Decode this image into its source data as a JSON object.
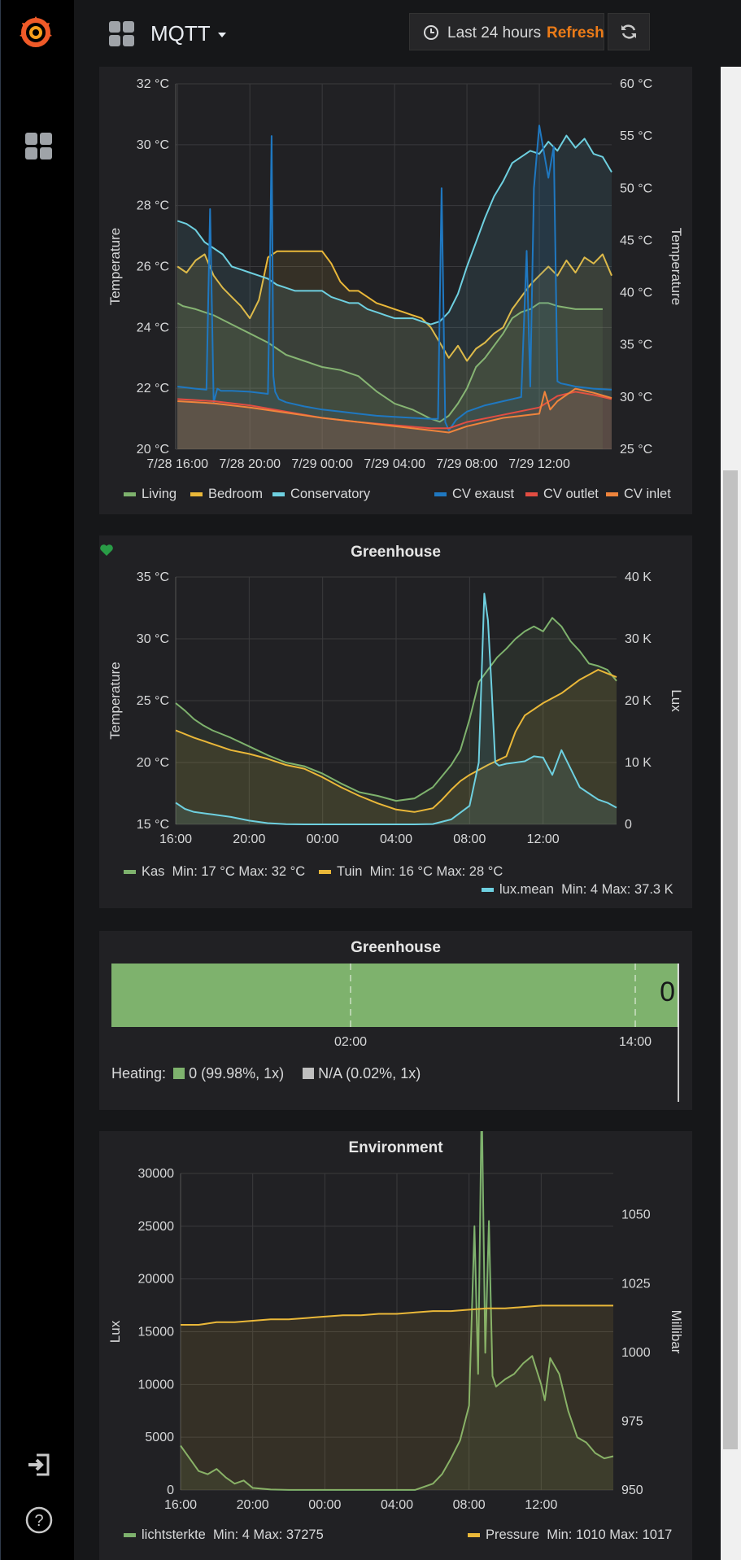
{
  "app": {
    "dashboard_title": "MQTT",
    "time_range": "Last 24 hours",
    "refresh_label": "Refresh e...",
    "icons": {
      "logo": "grafana-logo-icon",
      "dashboards": "dashboards-grid-icon",
      "signin": "sign-in-icon",
      "help": "help-question-icon",
      "clock": "clock-icon",
      "refresh": "refresh-icon"
    }
  },
  "panels": {
    "temperatures": {
      "title": "",
      "legend": [
        {
          "name": "Living",
          "color": "#7eb26d"
        },
        {
          "name": "Bedroom",
          "color": "#eab839"
        },
        {
          "name": "Conservatory",
          "color": "#6ed0e0"
        },
        {
          "name": "CV exaust",
          "color": "#1f78c1"
        },
        {
          "name": "CV outlet",
          "color": "#e24d42"
        },
        {
          "name": "CV inlet",
          "color": "#ef843c"
        }
      ]
    },
    "greenhouse_graph": {
      "title": "Greenhouse",
      "legend": [
        {
          "name": "Kas",
          "stats": "Min: 17 °C  Max: 32 °C",
          "color": "#7eb26d"
        },
        {
          "name": "Tuin",
          "stats": "Min: 16 °C  Max: 28 °C",
          "color": "#eab839"
        },
        {
          "name": "lux.mean",
          "stats": "Min: 4  Max: 37.3 K",
          "color": "#6ed0e0"
        }
      ]
    },
    "greenhouse_heating": {
      "title": "Greenhouse",
      "current_value": "0",
      "x_ticks": [
        "02:00",
        "14:00"
      ],
      "legend_label": "Heating:",
      "legend": [
        {
          "text": "0 (99.98%, 1x)",
          "color": "#7eb26d"
        },
        {
          "text": "N/A (0.02%, 1x)",
          "color": "#bfbfbf"
        }
      ],
      "share_zero": 0.9998
    },
    "environment": {
      "title": "Environment",
      "legend": [
        {
          "name": "lichtsterkte",
          "stats": "Min: 4  Max: 37275",
          "color": "#7eb26d"
        },
        {
          "name": "Pressure",
          "stats": "Min: 1010  Max: 1017",
          "color": "#eab839"
        }
      ]
    }
  },
  "chart_data": [
    {
      "type": "line",
      "title": "",
      "ylabel": "Temperature",
      "y2label": "Temperature",
      "x_ticks": [
        "7/28 16:00",
        "7/28 20:00",
        "7/29 00:00",
        "7/29 04:00",
        "7/29 08:00",
        "7/29 12:00"
      ],
      "x_range_hours": [
        -0.1,
        24
      ],
      "ylim": [
        20,
        32
      ],
      "y_ticks": [
        "20 °C",
        "22 °C",
        "24 °C",
        "26 °C",
        "28 °C",
        "30 °C",
        "32 °C"
      ],
      "y2lim": [
        25,
        60
      ],
      "y2_ticks": [
        "25 °C",
        "30 °C",
        "35 °C",
        "40 °C",
        "45 °C",
        "50 °C",
        "55 °C",
        "60 °C"
      ],
      "grid": true,
      "legend_position": "bottom",
      "series": [
        {
          "name": "Living",
          "axis": "left",
          "color": "#7eb26d",
          "x": [
            0,
            0.3,
            1,
            2,
            3,
            4,
            5,
            6,
            7,
            8,
            9,
            10,
            11,
            12,
            13,
            14,
            14.5,
            15,
            15.5,
            16,
            16.5,
            17,
            17.5,
            18,
            18.5,
            19,
            19.5,
            20,
            20.5,
            21,
            22,
            23,
            23.5
          ],
          "y": [
            24.8,
            24.7,
            24.6,
            24.4,
            24.1,
            23.8,
            23.5,
            23.1,
            22.9,
            22.7,
            22.6,
            22.4,
            21.9,
            21.5,
            21.3,
            21.0,
            20.9,
            21.1,
            21.5,
            22,
            22.7,
            23,
            23.4,
            23.8,
            24.3,
            24.5,
            24.6,
            24.8,
            24.8,
            24.7,
            24.6,
            24.6,
            24.6
          ]
        },
        {
          "name": "Bedroom",
          "axis": "left",
          "color": "#eab839",
          "x": [
            0,
            0.5,
            1,
            1.5,
            2,
            2.5,
            3,
            3.5,
            4,
            4.5,
            5,
            5.5,
            6,
            6.5,
            7,
            7.5,
            8,
            8.5,
            9,
            9.5,
            10,
            10.5,
            11,
            11.5,
            12,
            12.5,
            13,
            13.5,
            14,
            14.5,
            15,
            15.5,
            16,
            16.5,
            17,
            17.5,
            18,
            18.5,
            19,
            19.5,
            20,
            20.5,
            21,
            21.5,
            22,
            22.5,
            23,
            23.5,
            24
          ],
          "y": [
            26.0,
            25.8,
            26.2,
            26.4,
            25.7,
            25.3,
            25.0,
            24.7,
            24.3,
            24.9,
            26.3,
            26.5,
            26.5,
            26.5,
            26.5,
            26.5,
            26.5,
            26.1,
            25.5,
            25.2,
            25.2,
            25.0,
            24.8,
            24.7,
            24.6,
            24.5,
            24.4,
            24.3,
            24.0,
            23.5,
            23.0,
            23.4,
            22.9,
            23.3,
            23.5,
            23.8,
            24.0,
            24.6,
            25.0,
            25.4,
            25.7,
            26.0,
            25.7,
            26.2,
            25.8,
            26.3,
            26.1,
            26.4,
            25.7
          ]
        },
        {
          "name": "Conservatory",
          "axis": "left",
          "color": "#6ed0e0",
          "x": [
            0,
            0.5,
            1,
            1.5,
            2,
            2.5,
            3,
            3.5,
            4,
            4.5,
            5,
            5.5,
            6,
            6.5,
            7,
            7.5,
            8,
            8.5,
            9,
            9.5,
            10,
            10.5,
            11,
            11.5,
            12,
            12.5,
            13,
            13.5,
            14,
            14.5,
            15,
            15.5,
            16,
            16.5,
            17,
            17.5,
            18,
            18.5,
            19,
            19.5,
            20,
            20.5,
            21,
            21.5,
            22,
            22.5,
            23,
            23.5,
            24
          ],
          "y": [
            27.5,
            27.4,
            27.2,
            26.8,
            26.6,
            26.4,
            26.0,
            25.9,
            25.8,
            25.7,
            25.6,
            25.4,
            25.3,
            25.2,
            25.2,
            25.2,
            25.2,
            25.0,
            24.9,
            24.8,
            24.8,
            24.6,
            24.5,
            24.4,
            24.3,
            24.3,
            24.3,
            24.2,
            24.1,
            24.2,
            24.5,
            25.1,
            26.0,
            26.8,
            27.6,
            28.3,
            28.8,
            29.4,
            29.6,
            29.8,
            29.7,
            30.1,
            29.8,
            30.3,
            29.9,
            30.2,
            29.7,
            29.6,
            29.1
          ]
        },
        {
          "name": "CV exaust",
          "axis": "right",
          "color": "#1f78c1",
          "x": [
            0,
            1,
            1.6,
            1.8,
            2.0,
            2.2,
            2.4,
            3,
            4,
            5,
            5.1,
            5.2,
            5.3,
            5.4,
            5.6,
            6,
            7,
            8,
            9,
            10,
            11,
            12,
            13,
            14,
            14.4,
            14.6,
            14.8,
            15,
            15.4,
            16,
            17,
            18,
            19,
            19.3,
            19.5,
            19.7,
            20,
            20.5,
            20.8,
            21,
            21.2,
            21.5,
            22,
            23,
            24
          ],
          "y": [
            31,
            30.8,
            30.7,
            48,
            29.5,
            30.8,
            30.6,
            30.6,
            30.5,
            30.3,
            41,
            55,
            32,
            30.5,
            29.8,
            29.5,
            29.1,
            28.8,
            28.6,
            28.4,
            28.2,
            28.1,
            28.0,
            27.9,
            27.9,
            50,
            27.6,
            26.8,
            27.8,
            28.6,
            29.2,
            29.6,
            30.0,
            44,
            31,
            50,
            56,
            51,
            54,
            31.5,
            31.3,
            31.2,
            31.0,
            30.8,
            30.7
          ]
        },
        {
          "name": "CV outlet",
          "axis": "right",
          "color": "#e24d42",
          "x": [
            0,
            2,
            4,
            6,
            8,
            10,
            12,
            14,
            15,
            16,
            18,
            20,
            21,
            22,
            23,
            24
          ],
          "y": [
            29.8,
            29.6,
            29.2,
            28.6,
            28.0,
            27.6,
            27.3,
            27.0,
            27.0,
            27.6,
            28.3,
            29.0,
            30.1,
            30.5,
            30.2,
            29.8
          ]
        },
        {
          "name": "CV inlet",
          "axis": "right",
          "color": "#ef843c",
          "x": [
            0,
            2,
            4,
            6,
            8,
            10,
            12,
            14,
            15,
            16,
            18,
            20,
            20.3,
            20.6,
            21,
            22,
            23,
            24
          ],
          "y": [
            29.6,
            29.4,
            29.0,
            28.5,
            28.0,
            27.6,
            27.2,
            26.8,
            26.6,
            27.2,
            28.0,
            28.4,
            30.5,
            28.8,
            29.6,
            30.8,
            30.4,
            29.9
          ]
        }
      ]
    },
    {
      "type": "line",
      "title": "Greenhouse",
      "ylabel": "Temperature",
      "y2label": "Lux",
      "x_ticks": [
        "16:00",
        "20:00",
        "00:00",
        "04:00",
        "08:00",
        "12:00"
      ],
      "x_range_hours": [
        0,
        24
      ],
      "ylim": [
        15,
        35
      ],
      "y_ticks": [
        "15 °C",
        "20 °C",
        "25 °C",
        "30 °C",
        "35 °C"
      ],
      "y2lim": [
        0,
        40000
      ],
      "y2_ticks": [
        "0",
        "10 K",
        "20 K",
        "30 K",
        "40 K"
      ],
      "grid": true,
      "legend_position": "bottom",
      "series": [
        {
          "name": "Kas",
          "axis": "left",
          "color": "#7eb26d",
          "x": [
            0,
            0.5,
            1,
            1.5,
            2,
            2.5,
            3,
            4,
            5,
            6,
            7,
            8,
            9,
            10,
            11,
            12,
            13,
            14,
            14.5,
            15,
            15.5,
            16,
            16.5,
            17,
            17.5,
            18,
            18.5,
            19,
            19.5,
            20,
            20.5,
            21,
            21.5,
            22,
            22.5,
            23,
            23.5,
            24
          ],
          "y": [
            24.8,
            24.2,
            23.5,
            23.0,
            22.6,
            22.3,
            22.0,
            21.3,
            20.6,
            20.0,
            19.7,
            19.1,
            18.3,
            17.6,
            17.3,
            16.9,
            17.1,
            18.0,
            18.9,
            19.8,
            21.0,
            23.5,
            26.5,
            27.5,
            28.5,
            29.2,
            30.0,
            30.6,
            31.0,
            30.6,
            31.7,
            31.0,
            29.8,
            29.0,
            28.0,
            27.8,
            27.5,
            26.6
          ]
        },
        {
          "name": "Tuin",
          "axis": "left",
          "color": "#eab839",
          "x": [
            0,
            1,
            2,
            3,
            4,
            5,
            6,
            7,
            8,
            9,
            10,
            11,
            12,
            13,
            14,
            14.5,
            15,
            15.5,
            16,
            17,
            18,
            18.5,
            19,
            20,
            21,
            22,
            23,
            23.5,
            24
          ],
          "y": [
            22.6,
            22.0,
            21.5,
            21.0,
            20.7,
            20.3,
            19.8,
            19.5,
            18.8,
            18.0,
            17.3,
            16.7,
            16.2,
            16.0,
            16.3,
            17.0,
            17.8,
            18.5,
            19.0,
            19.8,
            20.5,
            22.5,
            23.8,
            24.8,
            25.6,
            26.7,
            27.5,
            27.2,
            26.9
          ]
        },
        {
          "name": "lux.mean",
          "axis": "right",
          "color": "#6ed0e0",
          "x": [
            0,
            0.5,
            1,
            2,
            3,
            4,
            5,
            6,
            7,
            8,
            9,
            10,
            11,
            12,
            13,
            14,
            15,
            16,
            16.5,
            16.8,
            17,
            17.2,
            17.4,
            17.6,
            18,
            19,
            19.5,
            20,
            20.5,
            21,
            21.5,
            22,
            22.5,
            23,
            23.5,
            24
          ],
          "y": [
            3500,
            2500,
            2000,
            1600,
            1200,
            600,
            200,
            20,
            5,
            4,
            4,
            4,
            4,
            4,
            4,
            50,
            800,
            3000,
            10000,
            37300,
            33000,
            22000,
            10000,
            9500,
            9800,
            10200,
            11000,
            10800,
            8000,
            12000,
            9000,
            6000,
            5000,
            4000,
            3500,
            2700
          ]
        }
      ]
    },
    {
      "type": "bar",
      "title": "Greenhouse",
      "orientation": "horizontal",
      "x_ticks": [
        "02:00",
        "14:00"
      ],
      "categories": [
        "Heating: 0",
        "N/A"
      ],
      "values": [
        99.98,
        0.02
      ],
      "legend_position": "bottom"
    },
    {
      "type": "line",
      "title": "Environment",
      "ylabel": "Lux",
      "y2label": "Millibar",
      "x_ticks": [
        "16:00",
        "20:00",
        "00:00",
        "04:00",
        "08:00",
        "12:00"
      ],
      "x_range_hours": [
        0,
        24
      ],
      "ylim": [
        0,
        30000
      ],
      "y_ticks": [
        "0",
        "5000",
        "10000",
        "15000",
        "20000",
        "25000",
        "30000"
      ],
      "y2lim": [
        950,
        1065
      ],
      "y2_ticks": [
        "950",
        "975",
        "1000",
        "1025",
        "1050"
      ],
      "grid": true,
      "legend_position": "bottom",
      "series": [
        {
          "name": "lichtsterkte",
          "axis": "left",
          "color": "#7eb26d",
          "x": [
            0,
            0.5,
            1,
            1.5,
            2,
            2.5,
            3,
            3.5,
            4,
            5,
            6,
            7,
            8,
            9,
            10,
            11,
            12,
            13,
            14,
            14.5,
            15,
            15.5,
            16,
            16.3,
            16.5,
            16.7,
            16.9,
            17.1,
            17.3,
            17.5,
            18,
            18.5,
            19,
            19.5,
            20,
            20.2,
            20.5,
            21,
            21.5,
            22,
            22.5,
            23,
            23.5,
            24
          ],
          "y": [
            4200,
            3000,
            1800,
            1500,
            2000,
            1200,
            600,
            900,
            200,
            50,
            10,
            5,
            4,
            4,
            4,
            4,
            4,
            4,
            600,
            1500,
            3000,
            4700,
            8000,
            25000,
            11000,
            37275,
            13000,
            25500,
            10800,
            9800,
            10500,
            11000,
            12000,
            12700,
            10000,
            8500,
            12500,
            11000,
            7500,
            5000,
            4500,
            3500,
            3000,
            3200
          ]
        },
        {
          "name": "Pressure",
          "axis": "right",
          "color": "#eab839",
          "x": [
            0,
            1,
            1.5,
            2,
            3,
            4,
            5,
            6,
            7,
            8,
            9,
            10,
            11,
            12,
            13,
            14,
            15,
            16,
            17,
            18,
            19,
            20,
            21,
            22,
            23,
            24
          ],
          "y": [
            1010,
            1010,
            1010.5,
            1011,
            1011,
            1011.5,
            1012,
            1012,
            1012.5,
            1013,
            1013.5,
            1013.5,
            1014,
            1014,
            1014.5,
            1015,
            1015,
            1015.5,
            1016,
            1016,
            1016.5,
            1017,
            1017,
            1017,
            1017,
            1017
          ]
        }
      ]
    }
  ]
}
